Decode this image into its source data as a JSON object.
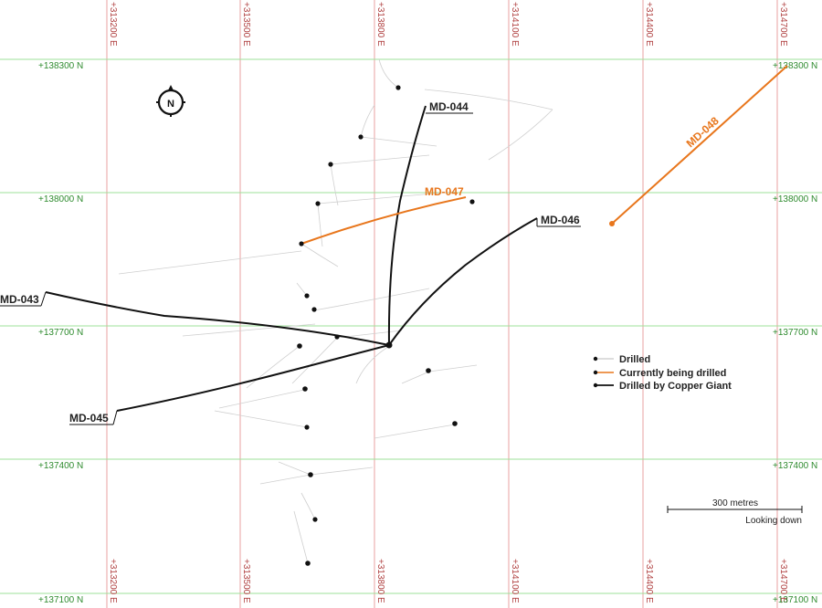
{
  "grid": {
    "eastings": [
      "+313200 E",
      "+313500 E",
      "+313800 E",
      "+314100 E",
      "+314400 E",
      "+314700 E"
    ],
    "northings": [
      "+138300 N",
      "+138000 N",
      "+137700 N",
      "+137400 N",
      "+137100 N"
    ]
  },
  "north_arrow": {
    "letter": "N"
  },
  "holes": {
    "md043": {
      "label": "MD-043",
      "status": "copper_giant"
    },
    "md044": {
      "label": "MD-044",
      "status": "copper_giant"
    },
    "md045": {
      "label": "MD-045",
      "status": "copper_giant"
    },
    "md046": {
      "label": "MD-046",
      "status": "copper_giant"
    },
    "md047": {
      "label": "MD-047",
      "status": "currently_drilled"
    },
    "md048": {
      "label": "MD-048",
      "status": "currently_drilled"
    }
  },
  "legend": {
    "drilled": "Drilled",
    "current": "Currently being drilled",
    "copper_giant": "Drilled by Copper Giant"
  },
  "scale": {
    "label": "300 metres",
    "view": "Looking down"
  },
  "colors": {
    "easting_grid": "#e8a0a0",
    "northing_grid": "#9ee09a",
    "current_hole": "#e8761c",
    "copper_giant_hole": "#111111"
  }
}
